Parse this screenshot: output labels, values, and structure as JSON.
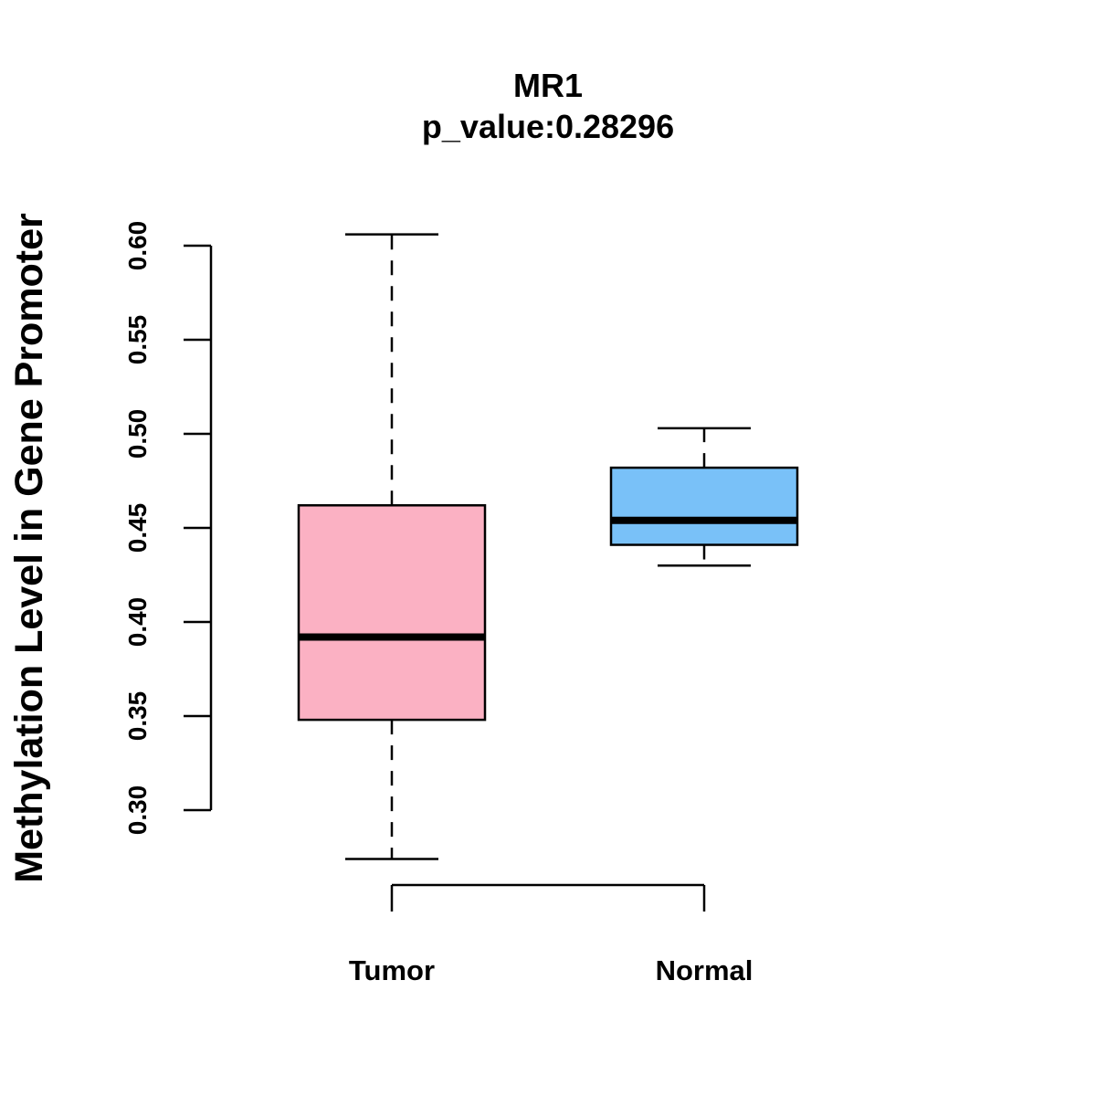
{
  "chart_data": {
    "type": "boxplot",
    "title": "MR1",
    "subtitle": "p_value:0.28296",
    "xlabel": "",
    "ylabel": "Methylation Level in Gene Promoter",
    "ylim": [
      0.3,
      0.6
    ],
    "yticks": [
      0.3,
      0.35,
      0.4,
      0.45,
      0.5,
      0.55,
      0.6
    ],
    "ytick_labels": [
      "0.30",
      "0.35",
      "0.40",
      "0.45",
      "0.50",
      "0.55",
      "0.60"
    ],
    "categories": [
      "Tumor",
      "Normal"
    ],
    "series": [
      {
        "name": "Tumor",
        "color": "#FBB1C3",
        "whisker_low": 0.274,
        "q1": 0.348,
        "median": 0.392,
        "q3": 0.462,
        "whisker_high": 0.606
      },
      {
        "name": "Normal",
        "color": "#79C1F8",
        "whisker_low": 0.43,
        "q1": 0.441,
        "median": 0.454,
        "q3": 0.482,
        "whisker_high": 0.503
      }
    ],
    "grid": false,
    "legend": "none"
  }
}
